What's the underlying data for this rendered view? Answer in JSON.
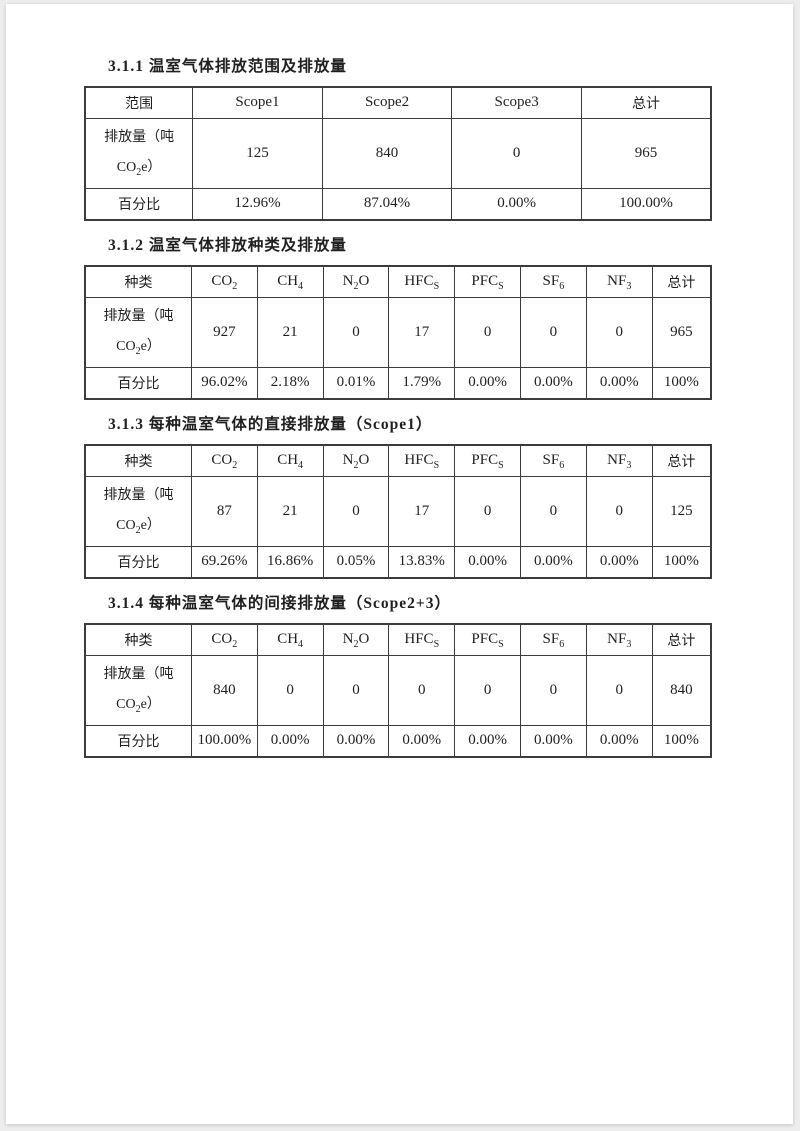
{
  "style": {
    "canvas_bg": "#ededed",
    "paper_bg": "#ffffff",
    "border_color": "#3c3c3c",
    "text_color": "#1f1f1f"
  },
  "sections": [
    {
      "title": "3.1.1 温室气体排放范围及排放量",
      "table": {
        "corner_label": "范围",
        "columns": [
          {
            "pre": "Scope1",
            "sub": "",
            "post": ""
          },
          {
            "pre": "Scope2",
            "sub": "",
            "post": ""
          },
          {
            "pre": "Scope3",
            "sub": "",
            "post": ""
          },
          {
            "pre": "总计",
            "sub": "",
            "post": ""
          }
        ],
        "emission_label_line1": "排放量（吨",
        "emission_label_line2": {
          "pre": "CO",
          "sub": "2",
          "post": "e）"
        },
        "percent_label": "百分比",
        "emissions": [
          "125",
          "840",
          "0",
          "965"
        ],
        "percentages": [
          "12.96%",
          "87.04%",
          "0.00%",
          "100.00%"
        ]
      }
    },
    {
      "title": "3.1.2 温室气体排放种类及排放量",
      "table": {
        "corner_label": "种类",
        "columns": [
          {
            "pre": "CO",
            "sub": "2",
            "post": ""
          },
          {
            "pre": "CH",
            "sub": "4",
            "post": ""
          },
          {
            "pre": "N",
            "sub": "2",
            "post": "O"
          },
          {
            "pre": "HFC",
            "sub": "S",
            "post": ""
          },
          {
            "pre": "PFC",
            "sub": "S",
            "post": ""
          },
          {
            "pre": "SF",
            "sub": "6",
            "post": ""
          },
          {
            "pre": "NF",
            "sub": "3",
            "post": ""
          },
          {
            "pre": "总计",
            "sub": "",
            "post": ""
          }
        ],
        "emission_label_line1": "排放量（吨",
        "emission_label_line2": {
          "pre": "CO",
          "sub": "2",
          "post": "e）"
        },
        "percent_label": "百分比",
        "emissions": [
          "927",
          "21",
          "0",
          "17",
          "0",
          "0",
          "0",
          "965"
        ],
        "percentages": [
          "96.02%",
          "2.18%",
          "0.01%",
          "1.79%",
          "0.00%",
          "0.00%",
          "0.00%",
          "100%"
        ]
      }
    },
    {
      "title": "3.1.3 每种温室气体的直接排放量（Scope1）",
      "table": {
        "corner_label": "种类",
        "columns": [
          {
            "pre": "CO",
            "sub": "2",
            "post": ""
          },
          {
            "pre": "CH",
            "sub": "4",
            "post": ""
          },
          {
            "pre": "N",
            "sub": "2",
            "post": "O"
          },
          {
            "pre": "HFC",
            "sub": "S",
            "post": ""
          },
          {
            "pre": "PFC",
            "sub": "S",
            "post": ""
          },
          {
            "pre": "SF",
            "sub": "6",
            "post": ""
          },
          {
            "pre": "NF",
            "sub": "3",
            "post": ""
          },
          {
            "pre": "总计",
            "sub": "",
            "post": ""
          }
        ],
        "emission_label_line1": "排放量（吨",
        "emission_label_line2": {
          "pre": "CO",
          "sub": "2",
          "post": "e）"
        },
        "percent_label": "百分比",
        "emissions": [
          "87",
          "21",
          "0",
          "17",
          "0",
          "0",
          "0",
          "125"
        ],
        "percentages": [
          "69.26%",
          "16.86%",
          "0.05%",
          "13.83%",
          "0.00%",
          "0.00%",
          "0.00%",
          "100%"
        ]
      }
    },
    {
      "title": "3.1.4 每种温室气体的间接排放量（Scope2+3）",
      "table": {
        "corner_label": "种类",
        "columns": [
          {
            "pre": "CO",
            "sub": "2",
            "post": ""
          },
          {
            "pre": "CH",
            "sub": "4",
            "post": ""
          },
          {
            "pre": "N",
            "sub": "2",
            "post": "O"
          },
          {
            "pre": "HFC",
            "sub": "S",
            "post": ""
          },
          {
            "pre": "PFC",
            "sub": "S",
            "post": ""
          },
          {
            "pre": "SF",
            "sub": "6",
            "post": ""
          },
          {
            "pre": "NF",
            "sub": "3",
            "post": ""
          },
          {
            "pre": "总计",
            "sub": "",
            "post": ""
          }
        ],
        "emission_label_line1": "排放量（吨",
        "emission_label_line2": {
          "pre": "CO",
          "sub": "2",
          "post": "e）"
        },
        "percent_label": "百分比",
        "emissions": [
          "840",
          "0",
          "0",
          "0",
          "0",
          "0",
          "0",
          "840"
        ],
        "percentages": [
          "100.00%",
          "0.00%",
          "0.00%",
          "0.00%",
          "0.00%",
          "0.00%",
          "0.00%",
          "100%"
        ]
      }
    }
  ]
}
